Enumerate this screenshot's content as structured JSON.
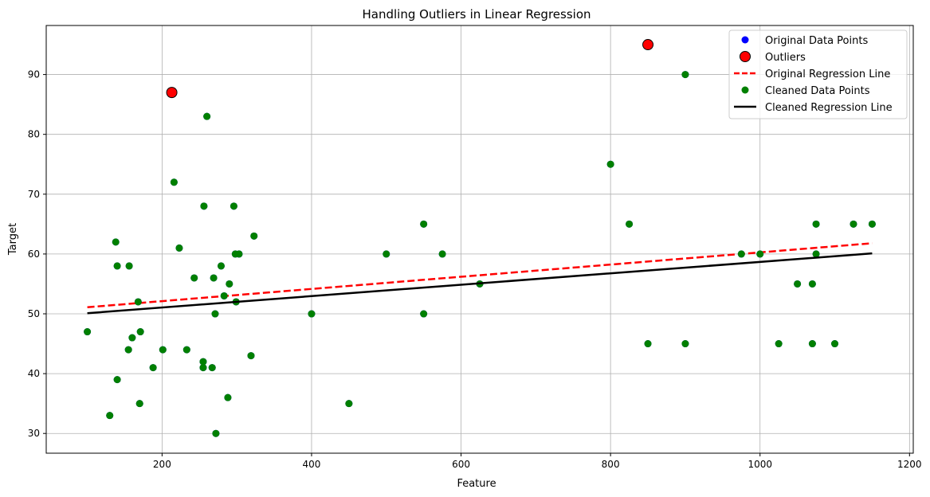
{
  "chart_data": {
    "type": "scatter",
    "title": "Handling Outliers in Linear Regression",
    "xlabel": "Feature",
    "ylabel": "Target",
    "xlim": [
      45,
      1205
    ],
    "ylim": [
      26.7,
      98.2
    ],
    "xticks": [
      200,
      400,
      600,
      800,
      1000,
      1200
    ],
    "yticks": [
      30,
      40,
      50,
      60,
      70,
      80,
      90
    ],
    "grid": true,
    "legend_position": "top-right",
    "colors": {
      "original_points": "#0000ff",
      "outliers": "#ff0000",
      "original_line": "#ff0000",
      "cleaned_points": "#008000",
      "cleaned_line": "#000000"
    },
    "series": [
      {
        "name": "Original Data Points",
        "kind": "scatter",
        "points": [
          [
            100,
            47
          ],
          [
            130,
            33
          ],
          [
            138,
            62
          ],
          [
            140,
            39
          ],
          [
            140,
            58
          ],
          [
            155,
            44
          ],
          [
            156,
            58
          ],
          [
            160,
            46
          ],
          [
            168,
            52
          ],
          [
            170,
            35
          ],
          [
            171,
            47
          ],
          [
            188,
            41
          ],
          [
            201,
            44
          ],
          [
            213,
            87
          ],
          [
            216,
            72
          ],
          [
            223,
            61
          ],
          [
            233,
            44
          ],
          [
            243,
            56
          ],
          [
            255,
            41
          ],
          [
            255,
            42
          ],
          [
            256,
            68
          ],
          [
            260,
            83
          ],
          [
            267,
            41
          ],
          [
            269,
            56
          ],
          [
            271,
            50
          ],
          [
            272,
            30
          ],
          [
            279,
            58
          ],
          [
            283,
            53
          ],
          [
            288,
            36
          ],
          [
            290,
            55
          ],
          [
            296,
            68
          ],
          [
            298,
            60
          ],
          [
            299,
            52
          ],
          [
            303,
            60
          ],
          [
            319,
            43
          ],
          [
            323,
            63
          ],
          [
            400,
            50
          ],
          [
            450,
            35
          ],
          [
            500,
            60
          ],
          [
            550,
            50
          ],
          [
            550,
            65
          ],
          [
            575,
            60
          ],
          [
            625,
            55
          ],
          [
            800,
            75
          ],
          [
            825,
            65
          ],
          [
            850,
            45
          ],
          [
            850,
            95
          ],
          [
            900,
            45
          ],
          [
            900,
            90
          ],
          [
            975,
            60
          ],
          [
            1000,
            60
          ],
          [
            1025,
            45
          ],
          [
            1050,
            55
          ],
          [
            1070,
            45
          ],
          [
            1070,
            55
          ],
          [
            1075,
            60
          ],
          [
            1075,
            65
          ],
          [
            1100,
            45
          ],
          [
            1125,
            65
          ],
          [
            1150,
            65
          ]
        ]
      },
      {
        "name": "Outliers",
        "kind": "scatter",
        "points": [
          [
            213,
            87
          ],
          [
            850,
            95
          ]
        ]
      },
      {
        "name": "Original Regression Line",
        "kind": "line",
        "points": [
          [
            100,
            51.1
          ],
          [
            1150,
            61.8
          ]
        ]
      },
      {
        "name": "Cleaned Data Points",
        "kind": "scatter",
        "points": [
          [
            100,
            47
          ],
          [
            130,
            33
          ],
          [
            138,
            62
          ],
          [
            140,
            39
          ],
          [
            140,
            58
          ],
          [
            155,
            44
          ],
          [
            156,
            58
          ],
          [
            160,
            46
          ],
          [
            168,
            52
          ],
          [
            170,
            35
          ],
          [
            171,
            47
          ],
          [
            188,
            41
          ],
          [
            201,
            44
          ],
          [
            216,
            72
          ],
          [
            223,
            61
          ],
          [
            233,
            44
          ],
          [
            243,
            56
          ],
          [
            255,
            41
          ],
          [
            255,
            42
          ],
          [
            256,
            68
          ],
          [
            260,
            83
          ],
          [
            267,
            41
          ],
          [
            269,
            56
          ],
          [
            271,
            50
          ],
          [
            272,
            30
          ],
          [
            279,
            58
          ],
          [
            283,
            53
          ],
          [
            288,
            36
          ],
          [
            290,
            55
          ],
          [
            296,
            68
          ],
          [
            298,
            60
          ],
          [
            299,
            52
          ],
          [
            303,
            60
          ],
          [
            319,
            43
          ],
          [
            323,
            63
          ],
          [
            400,
            50
          ],
          [
            450,
            35
          ],
          [
            500,
            60
          ],
          [
            550,
            50
          ],
          [
            550,
            65
          ],
          [
            575,
            60
          ],
          [
            625,
            55
          ],
          [
            800,
            75
          ],
          [
            825,
            65
          ],
          [
            850,
            45
          ],
          [
            900,
            45
          ],
          [
            900,
            90
          ],
          [
            975,
            60
          ],
          [
            1000,
            60
          ],
          [
            1025,
            45
          ],
          [
            1050,
            55
          ],
          [
            1070,
            45
          ],
          [
            1070,
            55
          ],
          [
            1075,
            60
          ],
          [
            1075,
            65
          ],
          [
            1100,
            45
          ],
          [
            1125,
            65
          ],
          [
            1150,
            65
          ]
        ]
      },
      {
        "name": "Cleaned Regression Line",
        "kind": "line",
        "points": [
          [
            100,
            50.1
          ],
          [
            1150,
            60.1
          ]
        ]
      }
    ]
  }
}
